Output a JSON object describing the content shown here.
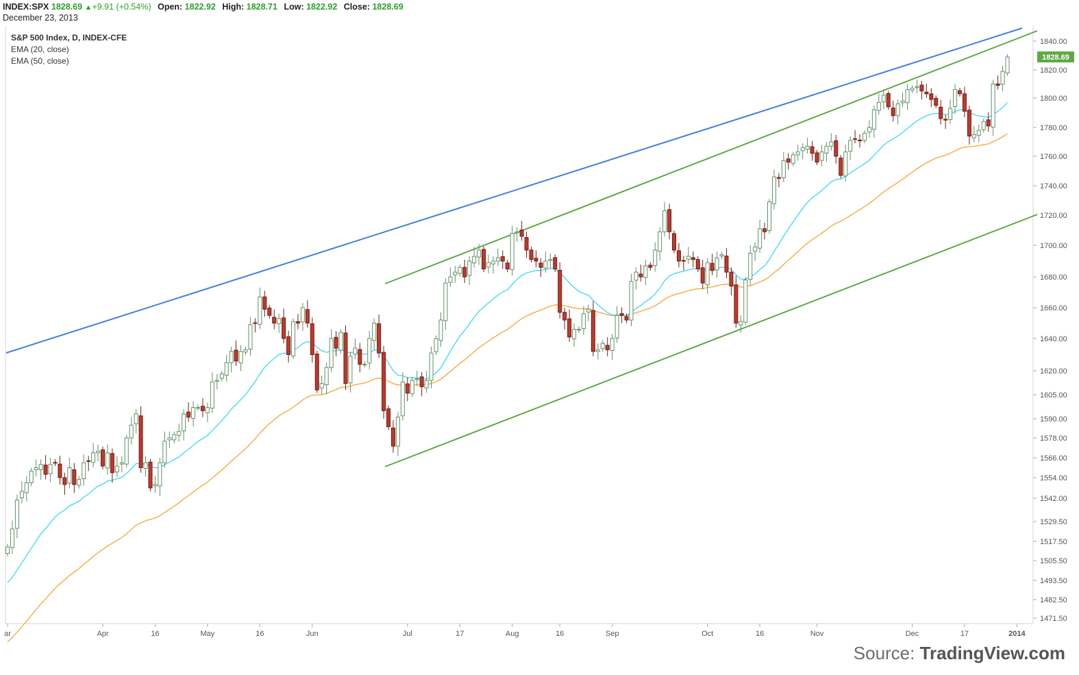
{
  "header": {
    "symbol": "INDEX:SPX",
    "last": "1828.69",
    "change": "+9.91 (+0.54%)",
    "open_label": "Open:",
    "open": "1822.92",
    "high_label": "High:",
    "high": "1828.71",
    "low_label": "Low:",
    "low": "1822.92",
    "close_label": "Close:",
    "close": "1828.69",
    "date": "December 23, 2013"
  },
  "legend": {
    "title": "S&P 500 Index, D, INDEX-CFE",
    "ema20": "EMA (20, close)",
    "ema50": "EMA (50, close)"
  },
  "source": {
    "prefix": "Source: ",
    "brand": "TradingView.com"
  },
  "colors": {
    "up_fill": "#ffffff",
    "up_stroke": "#5f8f66",
    "down_fill": "#c0392b",
    "down_stroke": "#6b1f16",
    "ema20": "#39d9f2",
    "ema50": "#f7a430",
    "blue_trend": "#3f7fe0",
    "green_trend": "#5fa845",
    "last_price_bg": "#5fa845"
  },
  "chart_data": {
    "type": "candlestick",
    "title": "S&P 500 Index, D, INDEX-CFE",
    "y_ticks": [
      1471.5,
      1482.5,
      1493.5,
      1505.5,
      1517.5,
      1529.5,
      1542,
      1554,
      1566,
      1578,
      1590,
      1605,
      1620,
      1640,
      1660,
      1680,
      1700,
      1720,
      1740,
      1760,
      1780,
      1800,
      1820,
      1840
    ],
    "y_tick_labels": [
      "1471.50",
      "1482.50",
      "1493.50",
      "1505.50",
      "1517.50",
      "1529.50",
      "1542.00",
      "1554.00",
      "1566.00",
      "1578.00",
      "1590.00",
      "1605.00",
      "1620.00",
      "1640.00",
      "1660.00",
      "1680.00",
      "1700.00",
      "1720.00",
      "1740.00",
      "1760.00",
      "1780.00",
      "1800.00",
      "1820.00",
      "1840.00"
    ],
    "x_ticks": [
      {
        "i": 0,
        "label": "ar"
      },
      {
        "i": 20,
        "label": "Apr"
      },
      {
        "i": 31,
        "label": "16"
      },
      {
        "i": 42,
        "label": "May"
      },
      {
        "i": 53,
        "label": "16"
      },
      {
        "i": 64,
        "label": "Jun"
      },
      {
        "i": 84,
        "label": "Jul"
      },
      {
        "i": 95,
        "label": "17"
      },
      {
        "i": 106,
        "label": "Aug"
      },
      {
        "i": 116,
        "label": "16"
      },
      {
        "i": 127,
        "label": "Sep"
      },
      {
        "i": 147,
        "label": "Oct"
      },
      {
        "i": 158,
        "label": "16"
      },
      {
        "i": 170,
        "label": "Nov"
      },
      {
        "i": 190,
        "label": "Dec"
      },
      {
        "i": 201,
        "label": "17"
      },
      {
        "i": 212,
        "label": "2014"
      }
    ],
    "last_price_label": "1828.69",
    "closes": [
      1514,
      1525,
      1541,
      1546,
      1551,
      1558,
      1560,
      1562,
      1556,
      1562,
      1563,
      1554,
      1550,
      1560,
      1550,
      1553,
      1563,
      1564,
      1569,
      1570,
      1561,
      1569,
      1557,
      1561,
      1563,
      1578,
      1586,
      1593,
      1560,
      1563,
      1548,
      1550,
      1563,
      1576,
      1578,
      1580,
      1582,
      1593,
      1591,
      1597,
      1597,
      1595,
      1597,
      1613,
      1614,
      1618,
      1625,
      1632,
      1626,
      1632,
      1633,
      1649,
      1650,
      1667,
      1659,
      1655,
      1650,
      1653,
      1640,
      1630,
      1651,
      1650,
      1660,
      1650,
      1630,
      1608,
      1612,
      1622,
      1640,
      1634,
      1644,
      1612,
      1629,
      1634,
      1624,
      1624,
      1640,
      1650,
      1631,
      1595,
      1585,
      1573,
      1591,
      1613,
      1606,
      1614,
      1615,
      1610,
      1614,
      1631,
      1640,
      1652,
      1676,
      1680,
      1683,
      1686,
      1680,
      1690,
      1693,
      1697,
      1685,
      1689,
      1690,
      1692,
      1690,
      1685,
      1708,
      1709,
      1706,
      1697,
      1691,
      1690,
      1686,
      1690,
      1691,
      1685,
      1657,
      1652,
      1641,
      1646,
      1646,
      1656,
      1659,
      1632,
      1633,
      1637,
      1633,
      1640,
      1655,
      1655,
      1652,
      1677,
      1683,
      1680,
      1687,
      1686,
      1697,
      1709,
      1723,
      1709,
      1697,
      1690,
      1690,
      1693,
      1691,
      1685,
      1676,
      1689,
      1684,
      1692,
      1694,
      1683,
      1674,
      1650,
      1651,
      1678,
      1695,
      1699,
      1711,
      1709,
      1729,
      1746,
      1745,
      1757,
      1756,
      1761,
      1763,
      1766,
      1767,
      1762,
      1756,
      1763,
      1767,
      1770,
      1760,
      1747,
      1763,
      1771,
      1772,
      1771,
      1776,
      1780,
      1792,
      1797,
      1802,
      1794,
      1788,
      1796,
      1798,
      1806,
      1807,
      1808,
      1805,
      1803,
      1799,
      1795,
      1786,
      1785,
      1793,
      1806,
      1803,
      1791,
      1774,
      1775,
      1778,
      1784,
      1781,
      1810,
      1809,
      1819,
      1829
    ]
  }
}
